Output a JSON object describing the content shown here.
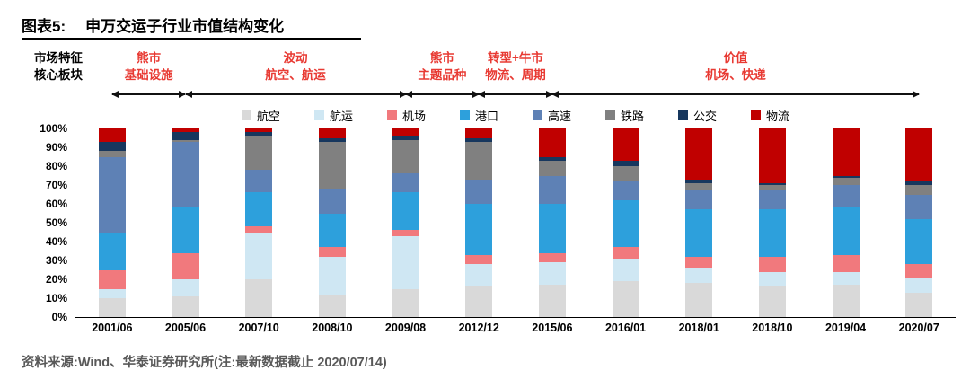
{
  "title": {
    "prefix": "图表5:",
    "text": "申万交运子行业市值结构变化"
  },
  "annotation": {
    "left_label": [
      "市场特征",
      "核心板块"
    ],
    "text_color": "#e83a33",
    "phases": [
      {
        "line1": "熊市",
        "line2": "基础设施",
        "from": 0,
        "to": 1
      },
      {
        "line1": "波动",
        "line2": "航空、航运",
        "from": 1,
        "to": 4
      },
      {
        "line1": "熊市",
        "line2": "主题品种",
        "from": 4,
        "to": 5
      },
      {
        "line1": "转型+牛市",
        "line2": "物流、周期",
        "from": 5,
        "to": 6
      },
      {
        "line1": "价值",
        "line2": "机场、快递",
        "from": 6,
        "to": 11
      }
    ]
  },
  "chart_data": {
    "type": "bar",
    "stacked": true,
    "percent": true,
    "title": "申万交运子行业市值结构变化",
    "xlabel": "",
    "ylabel": "",
    "ylim": [
      0,
      100
    ],
    "grid": false,
    "legend_position": "top",
    "y_ticks": [
      "100%",
      "90%",
      "80%",
      "70%",
      "60%",
      "50%",
      "40%",
      "30%",
      "20%",
      "10%",
      "0%"
    ],
    "categories": [
      "2001/06",
      "2005/06",
      "2007/10",
      "2008/10",
      "2009/08",
      "2012/12",
      "2015/06",
      "2016/01",
      "2018/01",
      "2018/10",
      "2019/04",
      "2020/07"
    ],
    "series": [
      {
        "name": "航空",
        "color": "#d9d9d9",
        "values": [
          10,
          11,
          20,
          12,
          15,
          16,
          17,
          19,
          18,
          16,
          17,
          13
        ]
      },
      {
        "name": "航运",
        "color": "#cfe7f3",
        "values": [
          5,
          9,
          25,
          20,
          28,
          12,
          12,
          12,
          8,
          8,
          7,
          8
        ]
      },
      {
        "name": "机场",
        "color": "#f1797d",
        "values": [
          10,
          14,
          3,
          5,
          3,
          5,
          5,
          6,
          6,
          8,
          9,
          7
        ]
      },
      {
        "name": "港口",
        "color": "#2da0dc",
        "values": [
          20,
          24,
          18,
          18,
          20,
          27,
          26,
          25,
          25,
          25,
          25,
          24
        ]
      },
      {
        "name": "高速",
        "color": "#5e81b5",
        "values": [
          40,
          35,
          12,
          13,
          10,
          13,
          15,
          10,
          10,
          10,
          12,
          13
        ]
      },
      {
        "name": "铁路",
        "color": "#808080",
        "values": [
          3,
          1,
          18,
          25,
          18,
          20,
          8,
          8,
          4,
          3,
          4,
          5
        ]
      },
      {
        "name": "公交",
        "color": "#17375e",
        "values": [
          5,
          4,
          2,
          2,
          2,
          2,
          2,
          3,
          2,
          1,
          1,
          2
        ]
      },
      {
        "name": "物流",
        "color": "#c00000",
        "values": [
          7,
          2,
          2,
          5,
          4,
          5,
          15,
          17,
          27,
          29,
          25,
          28
        ]
      }
    ]
  },
  "source": "资料来源:Wind、华泰证券研究所(注:最新数据截止 2020/07/14)"
}
